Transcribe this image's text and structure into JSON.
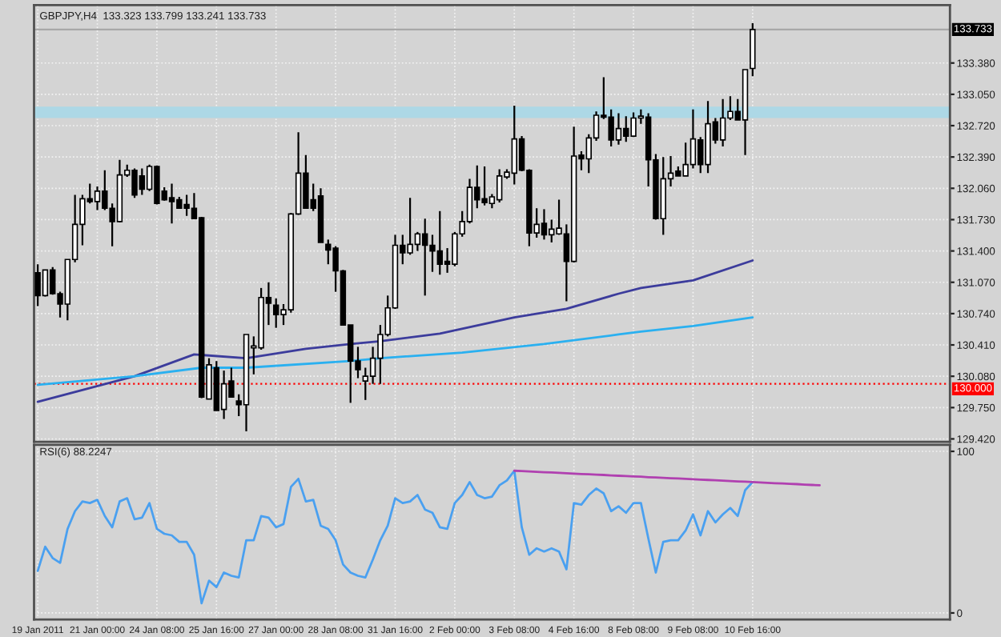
{
  "chart_data": [
    {
      "type": "candlestick",
      "title": "GBPJPY,H4  133.323 133.799 133.241 133.733",
      "categories": [
        null,
        null,
        null,
        null,
        null,
        null,
        null,
        null,
        null,
        null,
        null,
        null,
        null,
        null,
        null,
        null,
        null,
        null,
        null,
        null,
        null,
        null,
        null,
        null,
        null,
        null,
        null,
        null,
        null,
        null,
        null,
        null,
        null,
        null,
        null,
        null,
        null,
        null,
        null,
        null,
        null,
        null,
        null,
        null,
        null,
        null,
        null,
        null,
        null,
        null,
        null,
        null,
        null,
        null,
        null,
        null,
        null,
        null,
        null,
        null,
        null,
        null,
        null,
        null,
        null,
        null,
        null,
        null,
        null,
        null,
        null,
        null,
        null,
        null,
        null,
        null,
        null,
        null,
        null,
        null,
        null,
        null,
        null,
        null,
        null,
        null,
        null,
        null,
        null,
        null,
        null,
        null,
        null,
        null,
        null,
        null,
        null,
        null,
        null,
        null,
        null,
        null,
        null,
        null,
        null,
        null,
        null,
        null,
        null,
        null,
        null,
        null,
        null,
        null,
        null,
        null,
        null,
        null,
        null,
        null,
        null,
        null,
        null
      ],
      "ohlc": [
        [
          131.17,
          131.26,
          130.82,
          130.93
        ],
        [
          130.93,
          131.2,
          130.92,
          131.2
        ],
        [
          131.2,
          131.23,
          130.94,
          130.95
        ],
        [
          130.95,
          130.97,
          130.7,
          130.84
        ],
        [
          130.84,
          131.31,
          130.67,
          131.31
        ],
        [
          131.31,
          131.99,
          131.28,
          131.68
        ],
        [
          131.68,
          131.99,
          131.46,
          131.95
        ],
        [
          131.95,
          132.11,
          131.9,
          131.92
        ],
        [
          131.92,
          132.08,
          131.83,
          132.03
        ],
        [
          132.03,
          132.25,
          131.83,
          131.85
        ],
        [
          131.85,
          131.9,
          131.45,
          131.71
        ],
        [
          131.71,
          132.36,
          131.7,
          132.2
        ],
        [
          132.2,
          132.31,
          132.18,
          132.25
        ],
        [
          132.25,
          132.27,
          131.96,
          131.99
        ],
        [
          132.19,
          132.27,
          131.99,
          132.05
        ],
        [
          132.05,
          132.31,
          132.03,
          132.29
        ],
        [
          132.29,
          132.3,
          131.89,
          131.9
        ],
        [
          132.03,
          132.07,
          131.93,
          131.94
        ],
        [
          131.96,
          132.11,
          131.69,
          131.92
        ],
        [
          131.94,
          131.97,
          131.85,
          131.85
        ],
        [
          131.89,
          131.99,
          131.77,
          131.85
        ],
        [
          131.85,
          132.01,
          131.74,
          131.74
        ],
        [
          131.75,
          131.76,
          129.85,
          129.86
        ],
        [
          129.84,
          130.27,
          129.84,
          130.2
        ],
        [
          130.17,
          130.24,
          129.72,
          129.72
        ],
        [
          129.73,
          130.14,
          129.63,
          130.0
        ],
        [
          130.03,
          130.17,
          129.86,
          129.86
        ],
        [
          129.82,
          129.89,
          129.66,
          129.78
        ],
        [
          129.78,
          130.52,
          129.5,
          130.52
        ],
        [
          130.38,
          130.5,
          130.1,
          130.4
        ],
        [
          130.38,
          131.01,
          130.36,
          130.91
        ],
        [
          130.91,
          131.07,
          130.62,
          130.85
        ],
        [
          130.83,
          130.9,
          130.59,
          130.73
        ],
        [
          130.73,
          130.84,
          130.62,
          130.78
        ],
        [
          130.78,
          131.8,
          130.75,
          131.79
        ],
        [
          131.79,
          132.65,
          131.78,
          132.22
        ],
        [
          132.22,
          132.41,
          131.85,
          131.85
        ],
        [
          131.94,
          132.11,
          131.82,
          131.85
        ],
        [
          131.98,
          132.06,
          131.49,
          131.49
        ],
        [
          131.47,
          131.52,
          131.26,
          131.41
        ],
        [
          131.43,
          131.45,
          130.97,
          131.19
        ],
        [
          131.19,
          131.2,
          130.62,
          130.62
        ],
        [
          130.62,
          130.62,
          129.8,
          130.24
        ],
        [
          130.24,
          130.39,
          130.06,
          130.15
        ],
        [
          130.03,
          130.17,
          129.83,
          130.08
        ],
        [
          130.08,
          130.39,
          130.0,
          130.27
        ],
        [
          130.27,
          130.62,
          130.0,
          130.52
        ],
        [
          130.52,
          130.93,
          130.5,
          130.8
        ],
        [
          130.8,
          131.57,
          130.79,
          131.46
        ],
        [
          131.46,
          131.57,
          131.26,
          131.38
        ],
        [
          131.38,
          131.96,
          131.36,
          131.47
        ],
        [
          131.47,
          131.6,
          131.4,
          131.58
        ],
        [
          131.58,
          131.74,
          130.93,
          131.46
        ],
        [
          131.46,
          131.57,
          131.18,
          131.4
        ],
        [
          131.4,
          131.82,
          131.15,
          131.26
        ],
        [
          131.29,
          131.43,
          131.17,
          131.26
        ],
        [
          131.26,
          131.6,
          131.24,
          131.58
        ],
        [
          131.58,
          131.82,
          131.55,
          131.71
        ],
        [
          131.71,
          132.16,
          131.69,
          132.07
        ],
        [
          132.07,
          132.3,
          131.85,
          131.94
        ],
        [
          131.95,
          132.29,
          131.88,
          131.91
        ],
        [
          131.9,
          132.0,
          131.85,
          131.97
        ],
        [
          131.94,
          132.26,
          131.91,
          132.19
        ],
        [
          132.18,
          132.26,
          132.16,
          132.23
        ],
        [
          132.22,
          132.93,
          132.1,
          132.58
        ],
        [
          132.58,
          132.61,
          132.24,
          132.25
        ],
        [
          132.25,
          132.26,
          131.45,
          131.59
        ],
        [
          131.59,
          131.85,
          131.54,
          131.68
        ],
        [
          131.69,
          131.84,
          131.52,
          131.57
        ],
        [
          131.57,
          131.73,
          131.49,
          131.63
        ],
        [
          131.58,
          131.94,
          131.57,
          131.64
        ],
        [
          131.58,
          131.68,
          130.87,
          131.29
        ],
        [
          131.29,
          132.71,
          131.28,
          132.4
        ],
        [
          132.41,
          132.45,
          132.25,
          132.37
        ],
        [
          132.37,
          132.63,
          132.22,
          132.59
        ],
        [
          132.59,
          132.87,
          132.56,
          132.83
        ],
        [
          132.83,
          133.23,
          132.79,
          132.81
        ],
        [
          132.81,
          132.89,
          132.5,
          132.57
        ],
        [
          132.57,
          132.85,
          132.52,
          132.69
        ],
        [
          132.69,
          132.82,
          132.55,
          132.61
        ],
        [
          132.61,
          132.86,
          132.6,
          132.8
        ],
        [
          132.8,
          132.89,
          132.74,
          132.82
        ],
        [
          132.81,
          132.85,
          132.08,
          132.36
        ],
        [
          132.36,
          132.42,
          131.73,
          131.74
        ],
        [
          131.74,
          132.39,
          131.57,
          132.16
        ],
        [
          132.16,
          132.4,
          132.08,
          132.22
        ],
        [
          132.24,
          132.29,
          132.19,
          132.19
        ],
        [
          132.19,
          132.54,
          132.19,
          132.31
        ],
        [
          132.31,
          132.89,
          132.27,
          132.58
        ],
        [
          132.57,
          132.6,
          132.22,
          132.31
        ],
        [
          132.31,
          132.98,
          132.22,
          132.74
        ],
        [
          132.76,
          132.8,
          132.53,
          132.57
        ],
        [
          132.57,
          133.0,
          132.5,
          132.8
        ],
        [
          132.8,
          133.03,
          132.78,
          132.87
        ],
        [
          132.87,
          133.0,
          132.78,
          132.78
        ],
        [
          132.78,
          133.31,
          132.41,
          133.31
        ],
        [
          133.323,
          133.799,
          133.241,
          133.733
        ],
        null,
        null,
        null,
        null,
        null,
        null,
        null,
        null,
        null,
        null,
        null,
        null,
        null,
        null,
        null,
        null,
        null,
        null,
        null,
        null,
        null,
        null,
        null,
        null,
        null,
        null
      ],
      "series": [
        {
          "type": "line",
          "color": "#3c3c9c",
          "values": [
            129.81,
            null,
            null,
            null,
            null,
            null,
            null,
            null,
            null,
            null,
            null,
            null,
            null,
            130.08,
            null,
            null,
            null,
            null,
            null,
            null,
            null,
            130.31,
            null,
            null,
            null,
            null,
            null,
            null,
            130.27,
            null,
            null,
            null,
            null,
            null,
            null,
            null,
            130.37,
            null,
            null,
            null,
            null,
            null,
            130.42,
            null,
            null,
            null,
            130.45,
            null,
            null,
            null,
            null,
            null,
            null,
            null,
            130.53,
            null,
            null,
            null,
            null,
            null,
            null,
            null,
            null,
            null,
            130.7,
            null,
            null,
            null,
            null,
            null,
            null,
            130.79,
            null,
            null,
            null,
            null,
            null,
            null,
            130.95,
            null,
            null,
            131.01,
            null,
            null,
            null,
            null,
            null,
            null,
            131.09,
            null,
            null,
            null,
            null,
            null,
            null,
            null,
            131.3,
            null,
            null,
            null,
            null,
            null,
            null,
            null,
            null,
            null,
            null,
            null,
            null,
            null,
            null,
            null,
            null,
            null,
            null,
            null,
            null,
            null,
            null,
            null,
            null,
            null,
            null
          ]
        },
        {
          "type": "line",
          "color": "#2ab0f0",
          "values": [
            129.99,
            null,
            null,
            null,
            null,
            null,
            null,
            null,
            null,
            null,
            null,
            null,
            null,
            130.08,
            null,
            null,
            null,
            null,
            null,
            null,
            null,
            null,
            130.17,
            null,
            null,
            null,
            null,
            null,
            130.17,
            null,
            null,
            null,
            null,
            null,
            null,
            null,
            null,
            null,
            null,
            null,
            null,
            null,
            130.24,
            null,
            null,
            null,
            130.27,
            null,
            null,
            null,
            null,
            null,
            null,
            null,
            null,
            null,
            null,
            130.33,
            null,
            null,
            null,
            null,
            null,
            null,
            null,
            null,
            null,
            null,
            130.42,
            null,
            null,
            null,
            null,
            null,
            null,
            null,
            null,
            null,
            130.52,
            null,
            null,
            130.55,
            null,
            null,
            null,
            null,
            null,
            null,
            130.61,
            null,
            null,
            null,
            null,
            null,
            null,
            null,
            130.7,
            null,
            null,
            null,
            null,
            null,
            null,
            null,
            null,
            null,
            null,
            null,
            null,
            null,
            null,
            null,
            null,
            null,
            null,
            null,
            null,
            null,
            null,
            null,
            null,
            null,
            null
          ]
        }
      ],
      "bands": [
        {
          "axis": "y",
          "from": 132.8,
          "to": 132.92,
          "color": "#add8e6"
        }
      ],
      "ref_lines": [
        {
          "axis": "y",
          "value": 130.0,
          "label": "130.000",
          "color": "#ff0000",
          "line_style": "dotted"
        },
        {
          "axis": "y",
          "value": 133.733,
          "label": "133.733",
          "color": "#a8a8a8",
          "line_style": "solid"
        }
      ],
      "ylim": [
        129.39,
        133.99
      ],
      "yticks": [
        {
          "value": 129.42,
          "label": "129.420"
        },
        {
          "value": 129.75,
          "label": "129.750"
        },
        {
          "value": 130.08,
          "label": "130.080"
        },
        {
          "value": 130.41,
          "label": "130.410"
        },
        {
          "value": 130.74,
          "label": "130.740"
        },
        {
          "value": 131.07,
          "label": "131.070"
        },
        {
          "value": 131.4,
          "label": "131.400"
        },
        {
          "value": 131.73,
          "label": "131.730"
        },
        {
          "value": 132.06,
          "label": "132.060"
        },
        {
          "value": 132.39,
          "label": "132.390"
        },
        {
          "value": 132.72,
          "label": "132.720"
        },
        {
          "value": 133.05,
          "label": "133.050"
        },
        {
          "value": 133.38,
          "label": "133.380"
        }
      ],
      "grid": true
    },
    {
      "type": "line",
      "title": "RSI(6) 88.2247",
      "categories": [
        "19 Jan 2011",
        null,
        null,
        null,
        null,
        null,
        null,
        null,
        "21 Jan 00:00",
        null,
        null,
        null,
        null,
        null,
        null,
        null,
        "24 Jan 08:00",
        null,
        null,
        null,
        null,
        null,
        null,
        null,
        "25 Jan 16:00",
        null,
        null,
        null,
        null,
        null,
        null,
        null,
        "27 Jan 00:00",
        null,
        null,
        null,
        null,
        null,
        null,
        null,
        "28 Jan 08:00",
        null,
        null,
        null,
        null,
        null,
        null,
        null,
        "31 Jan 16:00",
        null,
        null,
        null,
        null,
        null,
        null,
        null,
        "2 Feb 00:00",
        null,
        null,
        null,
        null,
        null,
        null,
        null,
        "3 Feb 08:00",
        null,
        null,
        null,
        null,
        null,
        null,
        null,
        "4 Feb 16:00",
        null,
        null,
        null,
        null,
        null,
        null,
        null,
        "8 Feb 08:00",
        null,
        null,
        null,
        null,
        null,
        null,
        null,
        "9 Feb 08:00",
        null,
        null,
        null,
        null,
        null,
        null,
        null,
        "10 Feb 16:00",
        null,
        null,
        null,
        null,
        null,
        null,
        null,
        null,
        null,
        null,
        null,
        null,
        null,
        null,
        null,
        null,
        null,
        null,
        null,
        null,
        null,
        null,
        null,
        null,
        null,
        null
      ],
      "series": [
        {
          "color": "#4aa0f0",
          "values": [
            26,
            41,
            34,
            31,
            52,
            63,
            69,
            68,
            70,
            60,
            53,
            69,
            71,
            58,
            59,
            68,
            52,
            49,
            48,
            44,
            44,
            36,
            6,
            20,
            16,
            25,
            23,
            22,
            45,
            45,
            60,
            59,
            53,
            55,
            78,
            83,
            69,
            70,
            54,
            52,
            45,
            30,
            25,
            23,
            22,
            33,
            45,
            54,
            71,
            68,
            69,
            73,
            64,
            62,
            53,
            52,
            68,
            73,
            81,
            73,
            71,
            72,
            79,
            82,
            88,
            53,
            36,
            40,
            38,
            40,
            38,
            27,
            68,
            67,
            73,
            77,
            74,
            63,
            66,
            62,
            68,
            68,
            46,
            25,
            44,
            45,
            45,
            51,
            61,
            48,
            63,
            56,
            61,
            65,
            60,
            76,
            81,
            null,
            null,
            null,
            null,
            null,
            null,
            null,
            null,
            null,
            null,
            null,
            null,
            null,
            null,
            null,
            null,
            null,
            null,
            null,
            null,
            null,
            null,
            null,
            null,
            null,
            null
          ]
        },
        {
          "color": "#b040b0",
          "values": [
            null,
            null,
            null,
            null,
            null,
            null,
            null,
            null,
            null,
            null,
            null,
            null,
            null,
            null,
            null,
            null,
            null,
            null,
            null,
            null,
            null,
            null,
            null,
            null,
            null,
            null,
            null,
            null,
            null,
            null,
            null,
            null,
            null,
            null,
            null,
            null,
            null,
            null,
            null,
            null,
            null,
            null,
            null,
            null,
            null,
            null,
            null,
            null,
            null,
            null,
            null,
            null,
            null,
            null,
            null,
            null,
            null,
            null,
            null,
            null,
            null,
            null,
            null,
            null,
            88.0,
            87.8,
            87.6,
            87.3,
            87.1,
            86.9,
            86.7,
            86.5,
            86.2,
            86.0,
            85.8,
            85.6,
            85.4,
            85.1,
            84.9,
            84.7,
            84.5,
            84.3,
            84.0,
            83.8,
            83.6,
            83.4,
            83.2,
            83.0,
            82.7,
            82.5,
            82.3,
            82.1,
            81.9,
            81.6,
            81.4,
            81.2,
            81.0,
            80.8,
            80.5,
            80.3,
            80.1,
            79.9,
            79.7,
            79.4,
            79.2,
            79.0,
            null,
            null,
            null,
            null,
            null,
            null,
            null,
            null,
            null,
            null,
            null,
            null,
            null,
            null,
            null,
            null,
            null
          ]
        }
      ],
      "ylim": [
        -4,
        104
      ],
      "yticks": [
        0,
        100
      ],
      "grid": true
    }
  ]
}
